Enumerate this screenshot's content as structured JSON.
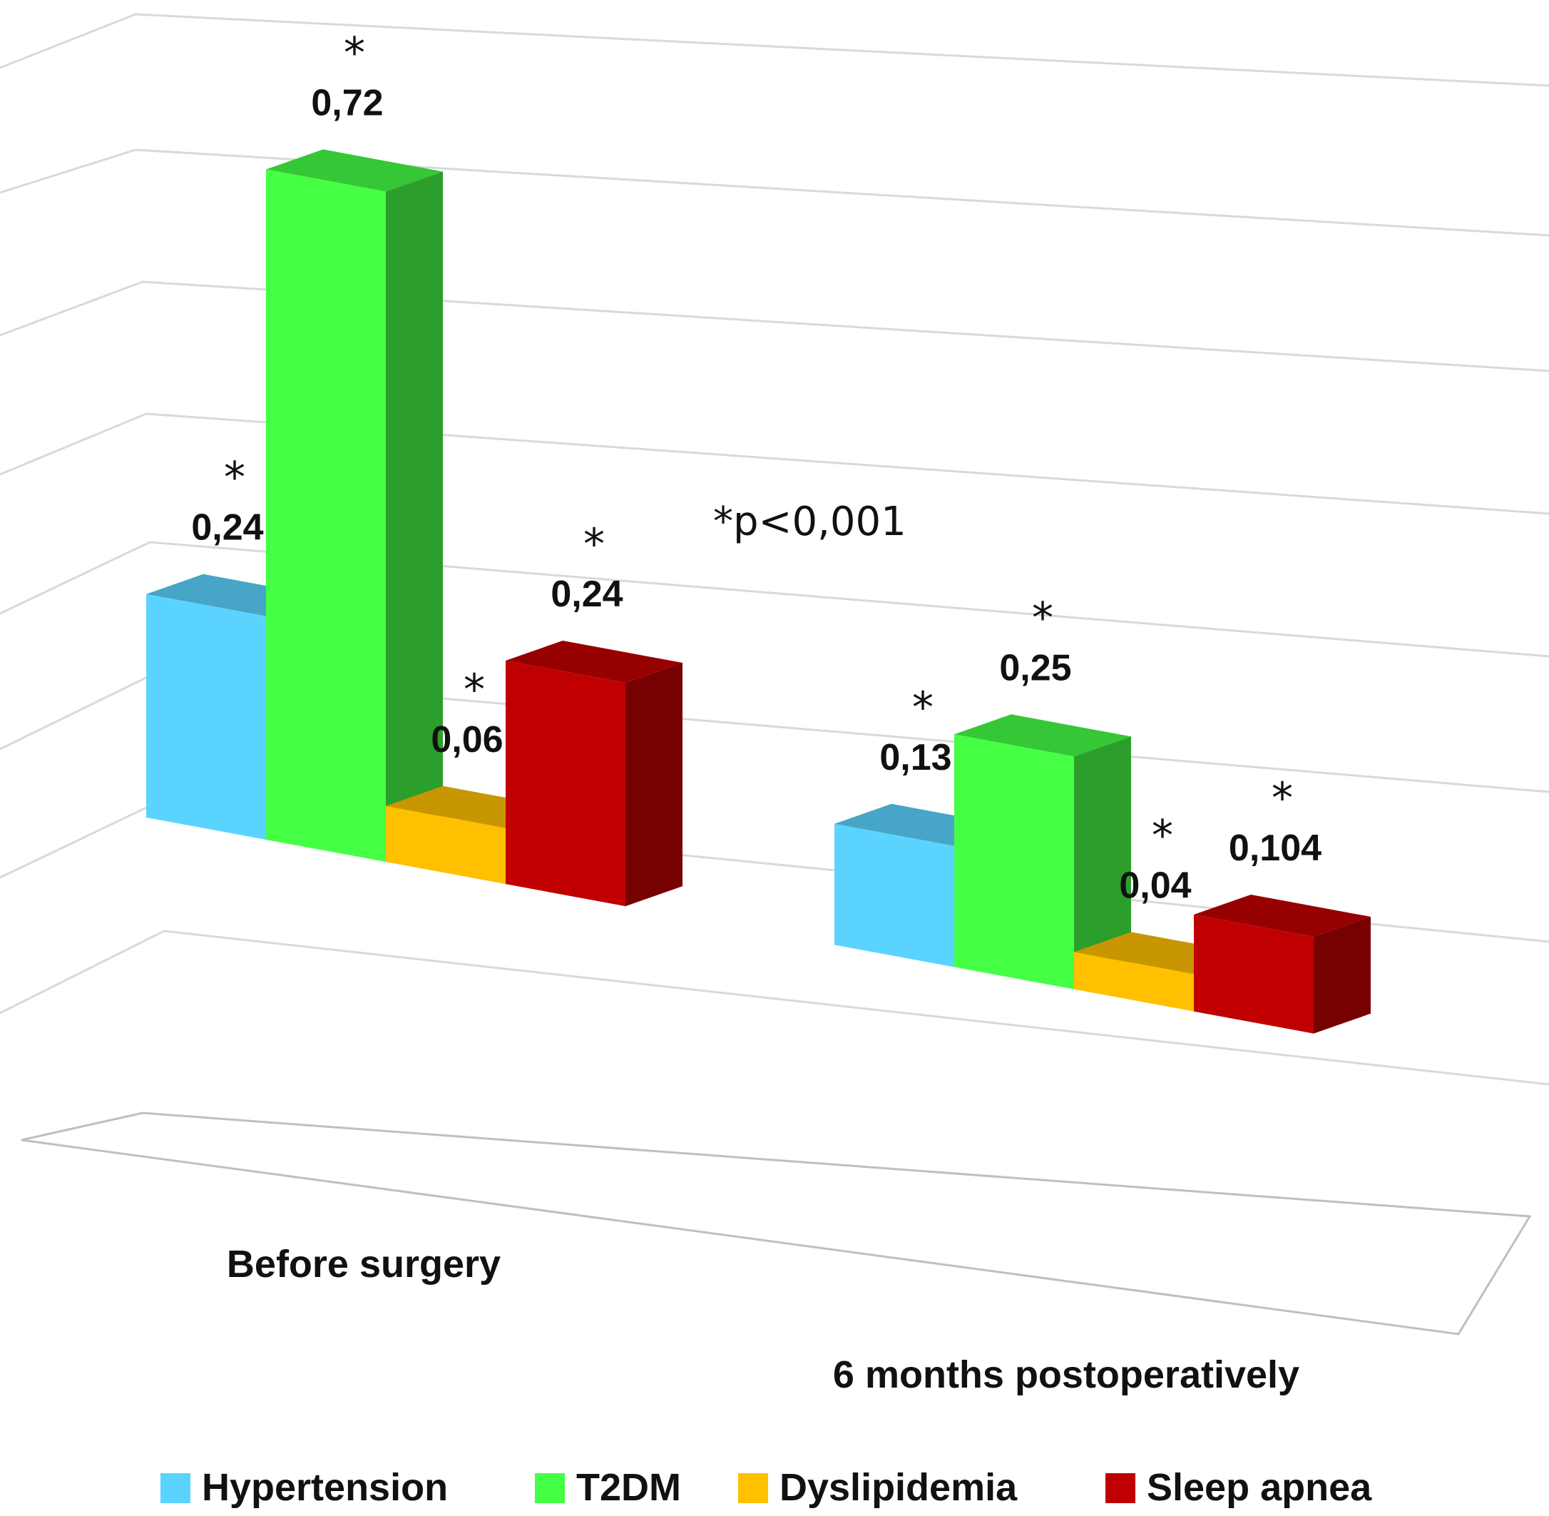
{
  "chart_data": {
    "type": "bar",
    "title": "",
    "xlabel": "",
    "ylabel": "",
    "ylim": [
      0,
      0.8
    ],
    "grid": true,
    "legend_position": "bottom",
    "categories": [
      "Before surgery",
      "6 months postoperatively"
    ],
    "series": [
      {
        "name": "Hypertension",
        "values": [
          0.24,
          0.13
        ],
        "labels": [
          "0,24",
          "0,13"
        ],
        "color": "#5bd3ff"
      },
      {
        "name": "T2DM",
        "values": [
          0.72,
          0.25
        ],
        "labels": [
          "0,72",
          "0,25"
        ],
        "color": "#45ff45"
      },
      {
        "name": "Dyslipidemia",
        "values": [
          0.06,
          0.04
        ],
        "labels": [
          "0,06",
          "0,04"
        ],
        "color": "#ffc000"
      },
      {
        "name": "Sleep apnea",
        "values": [
          0.24,
          0.104
        ],
        "labels": [
          "0,24",
          "0,104"
        ],
        "color": "#c00000"
      }
    ],
    "significance_marker": "*",
    "annotation": "*p<0,001"
  }
}
